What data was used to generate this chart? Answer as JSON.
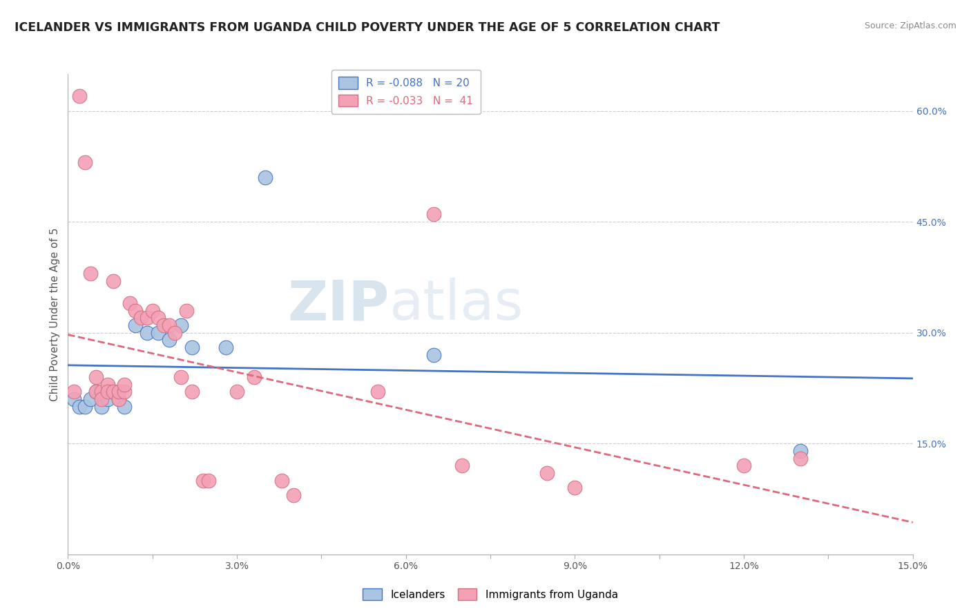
{
  "title": "ICELANDER VS IMMIGRANTS FROM UGANDA CHILD POVERTY UNDER THE AGE OF 5 CORRELATION CHART",
  "source": "Source: ZipAtlas.com",
  "ylabel": "Child Poverty Under the Age of 5",
  "xlim": [
    0.0,
    0.15
  ],
  "ylim": [
    0.0,
    0.65
  ],
  "xticks": [
    0.0,
    0.015,
    0.03,
    0.045,
    0.06,
    0.075,
    0.09,
    0.105,
    0.12,
    0.135,
    0.15
  ],
  "xticklabels": [
    "0.0%",
    "",
    "3.0%",
    "",
    "6.0%",
    "",
    "9.0%",
    "",
    "12.0%",
    "",
    "15.0%"
  ],
  "yticks_right": [
    0.15,
    0.3,
    0.45,
    0.6
  ],
  "yticklabels_right": [
    "15.0%",
    "30.0%",
    "45.0%",
    "60.0%"
  ],
  "icelanders_color": "#aac4e2",
  "immigrants_color": "#f4a0b5",
  "icelanders_line_color": "#4472c4",
  "immigrants_line_color": "#e06878",
  "grid_color": "#cccccc",
  "background_color": "#ffffff",
  "icelanders_x": [
    0.001,
    0.002,
    0.003,
    0.004,
    0.005,
    0.006,
    0.007,
    0.008,
    0.009,
    0.01,
    0.012,
    0.014,
    0.016,
    0.018,
    0.02,
    0.022,
    0.028,
    0.035,
    0.065,
    0.13
  ],
  "icelanders_y": [
    0.21,
    0.2,
    0.2,
    0.21,
    0.22,
    0.2,
    0.21,
    0.22,
    0.21,
    0.2,
    0.31,
    0.3,
    0.3,
    0.29,
    0.31,
    0.28,
    0.28,
    0.51,
    0.27,
    0.14
  ],
  "immigrants_x": [
    0.001,
    0.002,
    0.003,
    0.004,
    0.005,
    0.005,
    0.006,
    0.006,
    0.007,
    0.007,
    0.008,
    0.008,
    0.009,
    0.009,
    0.01,
    0.01,
    0.011,
    0.012,
    0.013,
    0.014,
    0.015,
    0.016,
    0.017,
    0.018,
    0.019,
    0.02,
    0.021,
    0.022,
    0.024,
    0.025,
    0.03,
    0.033,
    0.038,
    0.04,
    0.055,
    0.065,
    0.07,
    0.085,
    0.09,
    0.12,
    0.13
  ],
  "immigrants_y": [
    0.22,
    0.62,
    0.53,
    0.38,
    0.22,
    0.24,
    0.22,
    0.21,
    0.23,
    0.22,
    0.37,
    0.22,
    0.21,
    0.22,
    0.22,
    0.23,
    0.34,
    0.33,
    0.32,
    0.32,
    0.33,
    0.32,
    0.31,
    0.31,
    0.3,
    0.24,
    0.33,
    0.22,
    0.1,
    0.1,
    0.22,
    0.24,
    0.1,
    0.08,
    0.22,
    0.46,
    0.12,
    0.11,
    0.09,
    0.12,
    0.13
  ]
}
